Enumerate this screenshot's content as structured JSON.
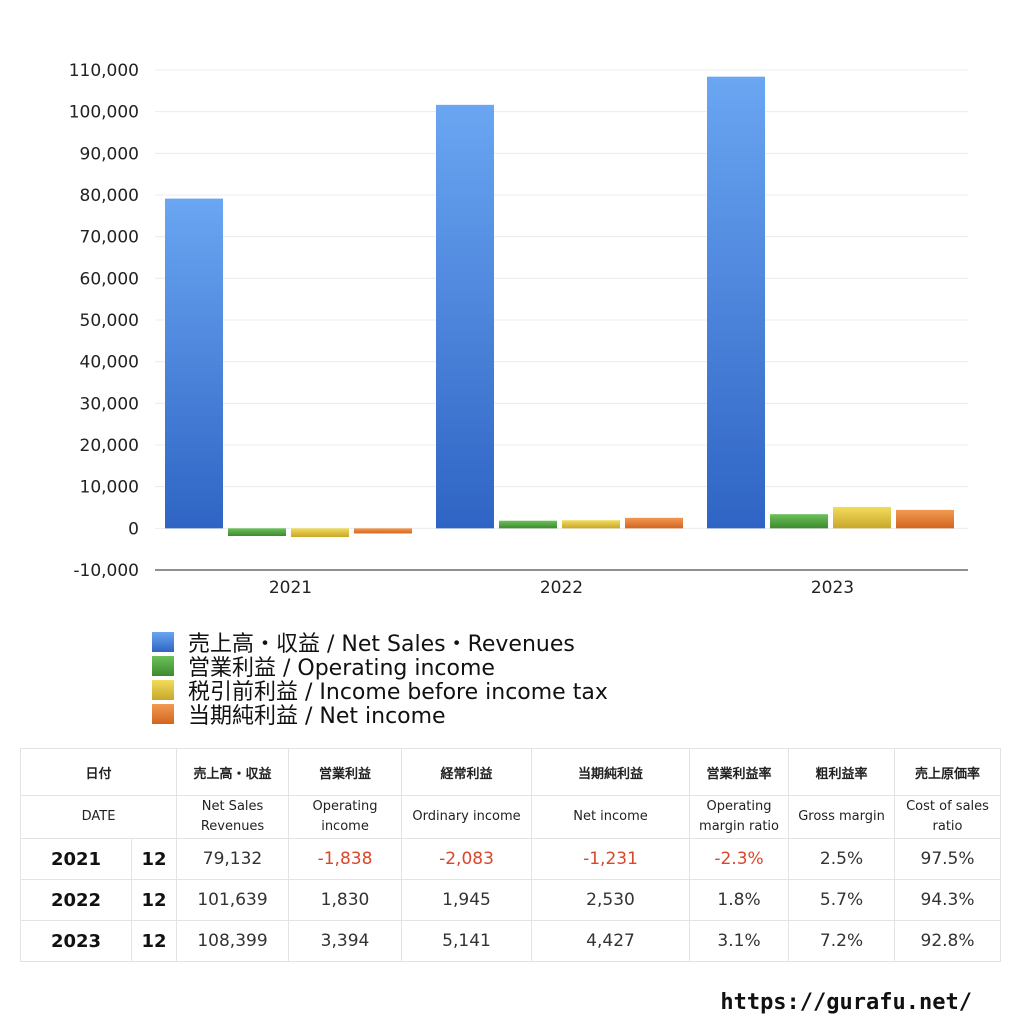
{
  "chart_data": {
    "type": "bar",
    "categories": [
      "2021",
      "2022",
      "2023"
    ],
    "series": [
      {
        "name": "売上高・収益 / Net Sales・Revenues",
        "values": [
          79132,
          101639,
          108399
        ],
        "color": "#3d7fe0"
      },
      {
        "name": "営業利益 / Operating income",
        "values": [
          -1838,
          1830,
          3394
        ],
        "color": "#4c9e3a"
      },
      {
        "name": "税引前利益 / Income before income tax",
        "values": [
          -2083,
          1945,
          5141
        ],
        "color": "#e0c03a"
      },
      {
        "name": "当期純利益 / Net income",
        "values": [
          -1231,
          2530,
          4427
        ],
        "color": "#e3782f"
      }
    ],
    "ylim": [
      -10000,
      110000
    ],
    "yticks": [
      "110,000",
      "100,000",
      "90,000",
      "80,000",
      "70,000",
      "60,000",
      "50,000",
      "40,000",
      "30,000",
      "20,000",
      "10,000",
      "0",
      "-10,000"
    ],
    "ytick_values": [
      110000,
      100000,
      90000,
      80000,
      70000,
      60000,
      50000,
      40000,
      30000,
      20000,
      10000,
      0,
      -10000
    ],
    "grid": true,
    "legend_position": "bottom-left"
  },
  "table": {
    "headers_jp": [
      "日付",
      "売上高・収益",
      "営業利益",
      "経常利益",
      "当期純利益",
      "営業利益率",
      "粗利益率",
      "売上原価率"
    ],
    "headers_en": [
      "DATE",
      "Net Sales Revenues",
      "Operating income",
      "Ordinary income",
      "Net income",
      "Operating margin ratio",
      "Gross margin",
      "Cost of sales ratio"
    ],
    "rows": [
      {
        "year": "2021",
        "month": "12",
        "sales": "79,132",
        "op": "-1,838",
        "ord": "-2,083",
        "net": "-1,231",
        "opm": "-2.3%",
        "gm": "2.5%",
        "cos": "97.5%"
      },
      {
        "year": "2022",
        "month": "12",
        "sales": "101,639",
        "op": "1,830",
        "ord": "1,945",
        "net": "2,530",
        "opm": "1.8%",
        "gm": "5.7%",
        "cos": "94.3%"
      },
      {
        "year": "2023",
        "month": "12",
        "sales": "108,399",
        "op": "3,394",
        "ord": "5,141",
        "net": "4,427",
        "opm": "3.1%",
        "gm": "7.2%",
        "cos": "92.8%"
      }
    ]
  },
  "footer": {
    "url": "https://gurafu.net/"
  }
}
